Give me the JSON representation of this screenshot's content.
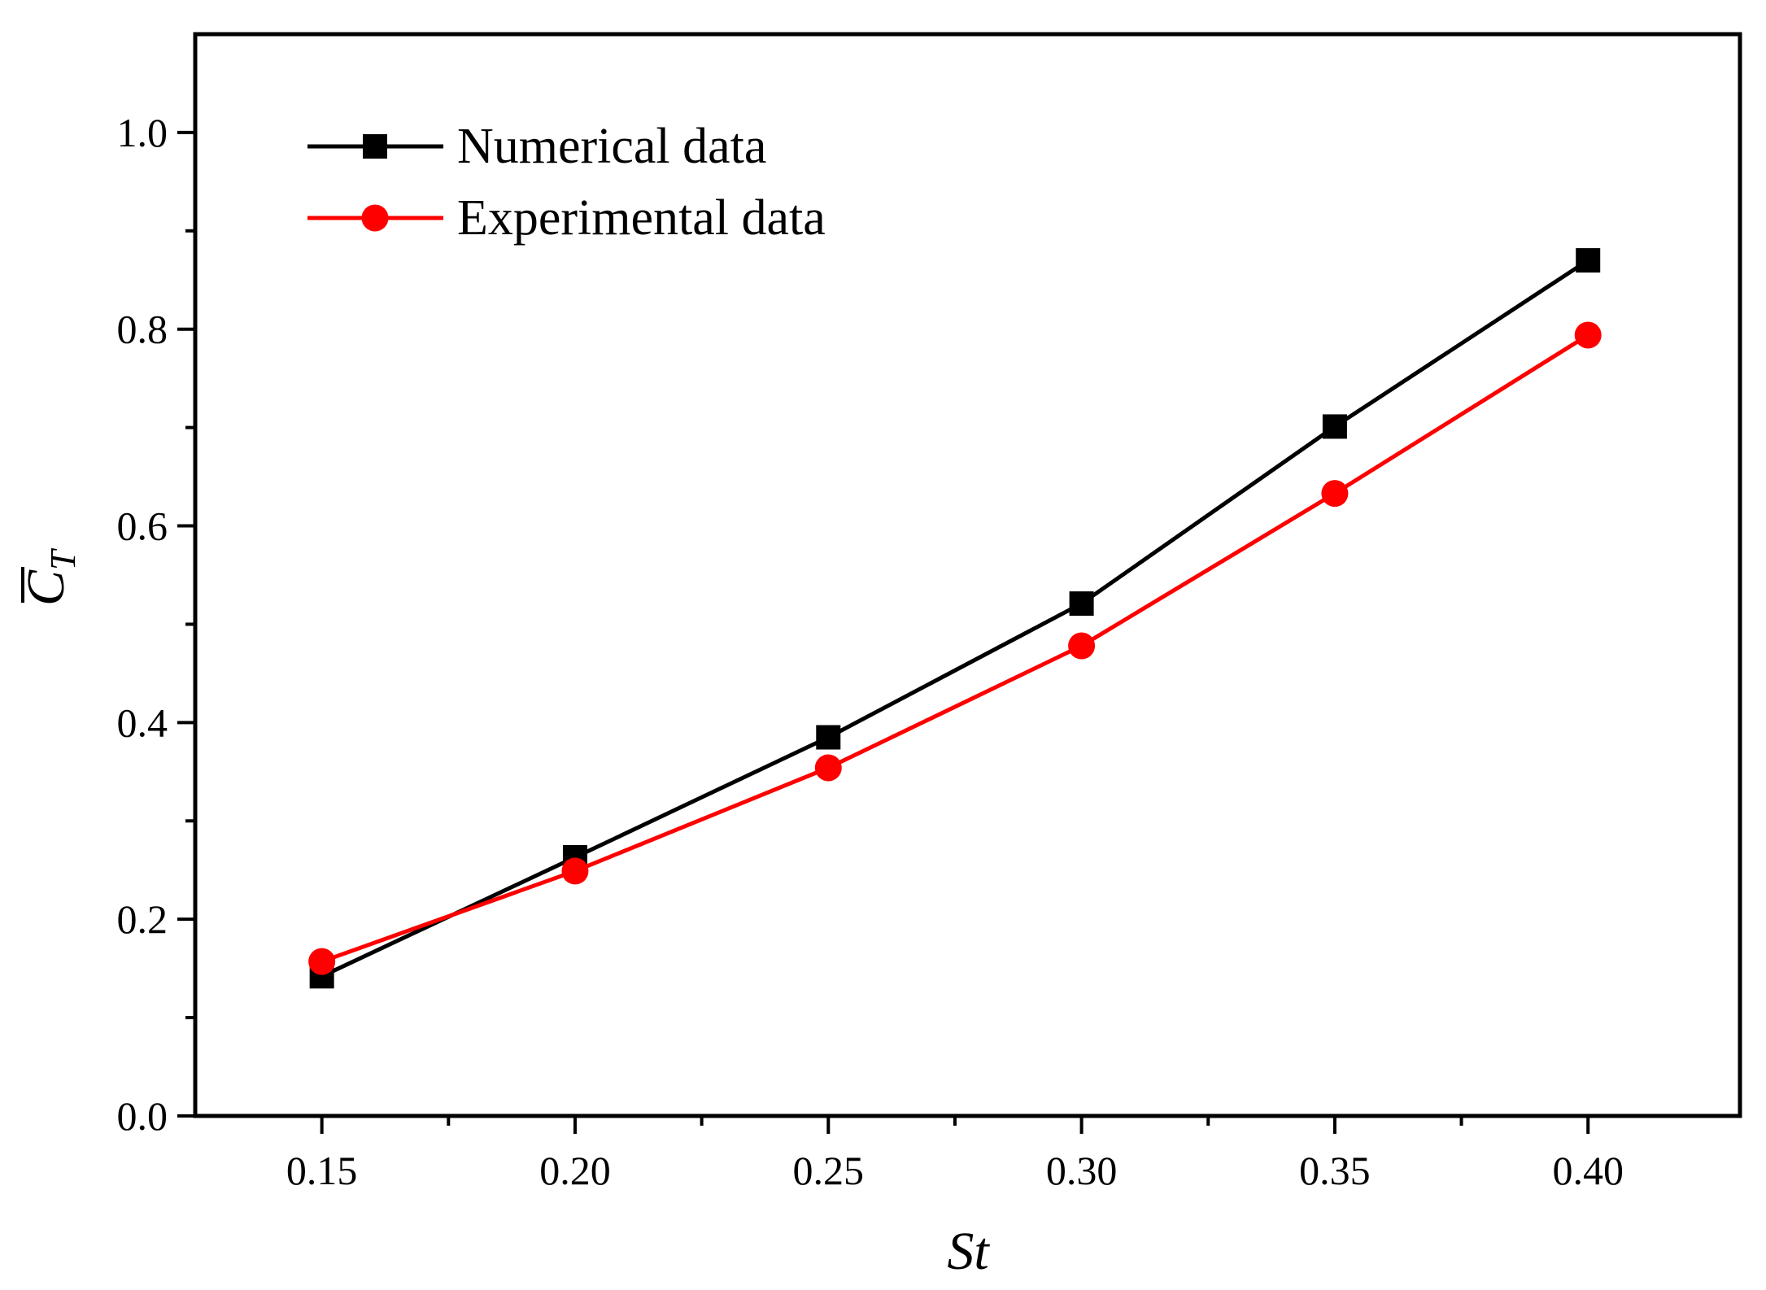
{
  "chart_data": {
    "type": "line",
    "title": "",
    "xlabel": "St",
    "ylabel": {
      "symbol": "C",
      "subscript": "T",
      "overbar": true
    },
    "xlim": [
      0.125,
      0.43
    ],
    "ylim": [
      0.0,
      1.1
    ],
    "xticks": [
      0.15,
      0.2,
      0.25,
      0.3,
      0.35,
      0.4
    ],
    "xtick_labels": [
      "0.15",
      "0.20",
      "0.25",
      "0.30",
      "0.35",
      "0.40"
    ],
    "xminor": [
      0.175,
      0.225,
      0.275,
      0.325,
      0.375
    ],
    "yticks": [
      0.0,
      0.2,
      0.4,
      0.6,
      0.8,
      1.0
    ],
    "ytick_labels": [
      "0.0",
      "0.2",
      "0.4",
      "0.6",
      "0.8",
      "1.0"
    ],
    "yminor": [
      0.1,
      0.3,
      0.5,
      0.7,
      0.9
    ],
    "grid": false,
    "legend_position": "top-left",
    "series": [
      {
        "name": "Numerical data",
        "color": "#000000",
        "marker": "square",
        "x": [
          0.15,
          0.2,
          0.25,
          0.3,
          0.35,
          0.4
        ],
        "y": [
          0.142,
          0.263,
          0.385,
          0.521,
          0.701,
          0.87
        ]
      },
      {
        "name": "Experimental data",
        "color": "#ff0000",
        "marker": "circle",
        "x": [
          0.15,
          0.2,
          0.25,
          0.3,
          0.35,
          0.4
        ],
        "y": [
          0.157,
          0.249,
          0.354,
          0.478,
          0.633,
          0.794
        ]
      }
    ]
  }
}
